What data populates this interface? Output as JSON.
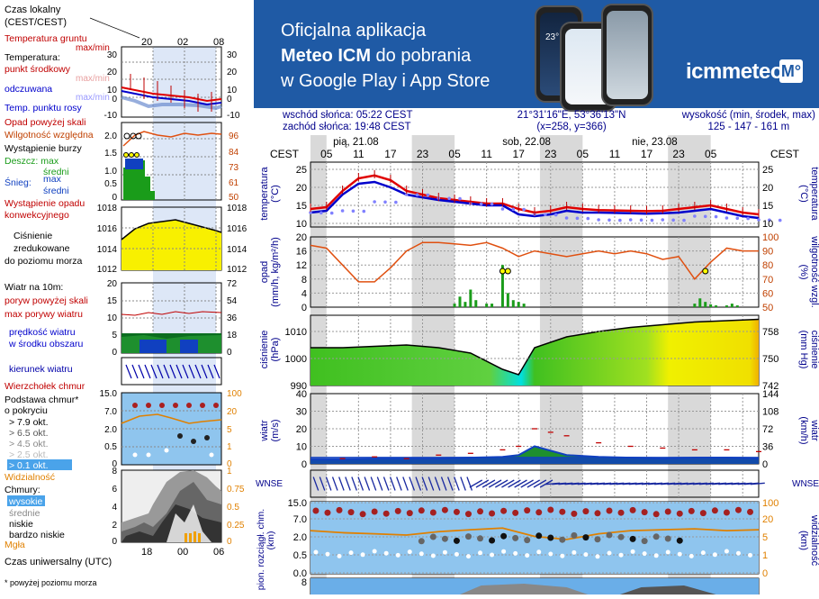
{
  "banner": {
    "line1": "Oficjalna aplikacja",
    "line2_bold": "Meteo ICM",
    "line2_rest": " do pobrania",
    "line3": "w Google Play i App Store",
    "logo_text": "icmmeteo",
    "logo_badge": "M°",
    "phone_temp": "23°"
  },
  "info": {
    "sunrise": "wschód słońca: 05:22 CEST",
    "sunset": "zachód słońca: 19:48 CEST",
    "coords": "21°31'16\"E, 53°36'13\"N",
    "grid": "(x=258,  y=366)",
    "elev_label": "wysokość (min, środek, max)",
    "elev_values": "125 - 147 - 161 m"
  },
  "days": [
    "pią, 21.08",
    "sob, 22.08",
    "nie, 23.08"
  ],
  "hours": [
    "05",
    "11",
    "17",
    "23",
    "05",
    "11",
    "17",
    "23",
    "05",
    "11",
    "17",
    "23",
    "05"
  ],
  "cest": "CEST",
  "legend": {
    "time_local": "Czas lokalny",
    "time_local2": "(CEST/CEST)",
    "time_ticks": [
      "20",
      "02",
      "08"
    ],
    "utc": "Czas uniwersalny (UTC)",
    "utc_ticks": [
      "18",
      "00",
      "06"
    ],
    "footnote": "* powyżej poziomu morza",
    "temp": {
      "ground": "Temperatura gruntu",
      "ground2": "max/min",
      "title": "Temperatura:",
      "mid": "punkt środkowy",
      "mid2": "max/min",
      "feel": "odczuwana",
      "feel2": "max/min",
      "dew": "Temp. punktu rosy",
      "left": [
        "30",
        "20",
        "10",
        "0",
        "-10"
      ],
      "right": [
        "30",
        "20",
        "10",
        "0",
        "-10"
      ]
    },
    "precip": {
      "over": "Opad powyżej skali",
      "hum": "Wilgotność względna",
      "storm": "Wystąpienie burzy",
      "rain": "Deszcz: max",
      "rain2": "średni",
      "snow": "Śnieg:",
      "snow2": "max",
      "snow3": "średni",
      "conv": "Wystąpienie opadu",
      "conv2": "konwekcyjnego",
      "left": [
        "2.0",
        "1.5",
        "1.0",
        "0.5",
        "0"
      ],
      "right": [
        "96",
        "84",
        "73",
        "61",
        "50"
      ]
    },
    "press": {
      "l1": "Ciśnienie",
      "l2": "zredukowane",
      "l3": "do poziomu morza",
      "left": [
        "1018",
        "1016",
        "1014",
        "1012"
      ],
      "right": [
        "1018",
        "1016",
        "1014",
        "1012"
      ]
    },
    "wind": {
      "title": "Wiatr na 10m:",
      "gust_over": "poryw powyżej skali",
      "gust_max": "max porywy wiatru",
      "speed": "prędkość wiatru",
      "speed2": "w środku obszaru",
      "left": [
        "20",
        "15",
        "10",
        "5",
        "0"
      ],
      "right": [
        "72",
        "54",
        "36",
        "18",
        "0"
      ]
    },
    "dir": "kierunek wiatru",
    "cloudbase": {
      "top": "Wierzchołek chmur",
      "title": "Podstawa chmur*",
      "title2": "o pokryciu",
      "o79": "> 7.9 okt.",
      "o65": "> 6.5 okt.",
      "o45": "> 4.5 okt.",
      "o25": "> 2.5 okt.",
      "o01": "> 0.1 okt.",
      "vis": "Widzialność",
      "left": [
        "15.0",
        "7.0",
        "2.0",
        "0.5",
        "0"
      ],
      "right": [
        "100",
        "20",
        "5",
        "1",
        "0"
      ]
    },
    "clouds": {
      "title": "Chmury:",
      "high": "wysokie",
      "mid": "średnie",
      "low": "niskie",
      "vlow": "bardzo niskie",
      "fog": "Mgła",
      "left": [
        "8",
        "6",
        "4",
        "2",
        "0"
      ],
      "right": [
        "1",
        "0.75",
        "0.5",
        "0.25",
        "0"
      ]
    }
  },
  "panels": {
    "temp": {
      "label1": "temperatura",
      "label2": "(°C)",
      "ticks": [
        "25",
        "20",
        "15",
        "10"
      ]
    },
    "precip": {
      "label1": "opad",
      "label2": "(mm/h, kg/m²/h)",
      "ticks": [
        "20",
        "16",
        "12",
        "8",
        "4",
        "0"
      ],
      "rlabel1": "(%)",
      "rlabel2": "wilgotność wzgl.",
      "rticks": [
        "100",
        "90",
        "80",
        "70",
        "60",
        "50"
      ]
    },
    "press": {
      "label1": "ciśnienie",
      "label2": "(hPa)",
      "ticks": [
        "1010",
        "1000",
        "990"
      ],
      "rlabel1": "(mm Hg)",
      "rlabel2": "ciśnienie",
      "rticks": [
        "758",
        "750",
        "742"
      ]
    },
    "wind": {
      "label1": "wiatr",
      "label2": "(m/s)",
      "ticks": [
        "40",
        "30",
        "20",
        "10",
        "0"
      ],
      "rlabel1": "(km/h)",
      "rlabel2": "wiatr",
      "rticks": [
        "144",
        "108",
        "72",
        "36",
        "0"
      ]
    },
    "dir": {
      "label": "WNSE"
    },
    "cloud": {
      "label1": "podst. chm.",
      "label2": "pion. rozciągł. chm.",
      "label3": "(km)",
      "ticks": [
        "15.0",
        "7.0",
        "2.0",
        "0.5",
        "0.0"
      ],
      "rlabel1": "widzialność",
      "rlabel2": "(km)",
      "rticks": [
        "100",
        "20",
        "5",
        "1",
        "0"
      ]
    },
    "bottom": {
      "tick": "8"
    }
  },
  "chart_data": [
    {
      "type": "line",
      "title": "temperatura (°C)",
      "x_unit": "hour index from 21.08 02:00 CEST",
      "ylim": [
        9,
        27
      ],
      "series": [
        {
          "name": "temperatura",
          "color": "#e00000",
          "x": [
            0,
            3,
            6,
            9,
            12,
            15,
            18,
            21,
            24,
            27,
            30,
            33,
            36,
            39,
            42,
            45,
            48,
            51,
            54,
            57,
            60,
            63,
            66,
            69,
            72,
            75,
            78,
            81,
            84
          ],
          "values": [
            14,
            14.5,
            19,
            22.5,
            23.3,
            22,
            19,
            18,
            17,
            16.5,
            16,
            15.5,
            15.5,
            14,
            13,
            13.5,
            14.5,
            14,
            13.7,
            13.6,
            13.5,
            13.4,
            13.5,
            14,
            14.5,
            15,
            14,
            13,
            12.5
          ]
        },
        {
          "name": "odczuwana",
          "color": "#0000cc",
          "x": [
            0,
            3,
            6,
            9,
            12,
            15,
            18,
            21,
            24,
            27,
            30,
            33,
            36,
            39,
            42,
            45,
            48,
            51,
            54,
            57,
            60,
            63,
            66,
            69,
            72,
            75,
            78,
            81,
            84
          ],
          "values": [
            13,
            13.5,
            18,
            21,
            21.5,
            20,
            18,
            17.2,
            16.5,
            16,
            15.5,
            15,
            15,
            12.5,
            12,
            12.5,
            13.5,
            13,
            13,
            12.9,
            12.8,
            12.7,
            12.8,
            13,
            13.5,
            14,
            13,
            12,
            11.5
          ]
        },
        {
          "name": "punkt rosy",
          "color": "#8080ff",
          "x": [
            0,
            6,
            12,
            18,
            24,
            30,
            36,
            42,
            48,
            54,
            60,
            66,
            72,
            78,
            84
          ],
          "values": [
            13,
            13.5,
            16,
            18,
            17,
            15.5,
            14,
            12.5,
            11.5,
            11,
            11,
            11,
            12,
            11.5,
            11
          ]
        }
      ]
    },
    {
      "type": "bar",
      "title": "opad (mm/h)",
      "series": [
        {
          "name": "deszcz",
          "color": "#1a9c1a",
          "x": [
            27,
            28,
            29,
            30,
            31,
            33,
            34,
            36,
            37,
            38,
            39,
            40,
            72,
            73,
            74,
            75,
            76,
            78,
            79,
            80
          ],
          "values": [
            1,
            3,
            1.5,
            5,
            2,
            1,
            1,
            12,
            4,
            2,
            1.5,
            1,
            1,
            2.5,
            1.5,
            0.8,
            0.5,
            0.5,
            1,
            0.5
          ]
        }
      ],
      "humidity": {
        "name": "wilgotność",
        "color": "#e05010",
        "x": [
          0,
          3,
          6,
          9,
          12,
          15,
          18,
          21,
          24,
          27,
          30,
          33,
          36,
          39,
          42,
          45,
          48,
          51,
          54,
          57,
          60,
          63,
          66,
          69,
          72,
          75,
          78,
          81,
          84
        ],
        "values": [
          94,
          92,
          80,
          68,
          68,
          78,
          90,
          96,
          96,
          95,
          94,
          96,
          92,
          86,
          90,
          88,
          86,
          88,
          90,
          88,
          90,
          88,
          84,
          86,
          70,
          82,
          92,
          90,
          90
        ]
      }
    },
    {
      "type": "area",
      "title": "ciśnienie (hPa)",
      "ylim": [
        990,
        1016
      ],
      "x": [
        0,
        6,
        12,
        18,
        24,
        30,
        36,
        39,
        42,
        48,
        54,
        60,
        66,
        72,
        78,
        84
      ],
      "values": [
        1004,
        1004,
        1004.5,
        1005,
        1004,
        1002,
        996,
        994,
        1004,
        1008,
        1010,
        1011.5,
        1012.5,
        1013.5,
        1014,
        1014.5
      ]
    },
    {
      "type": "area",
      "title": "wiatr (m/s)",
      "ylim": [
        0,
        40
      ],
      "series": [
        {
          "name": "prędkość",
          "color": "#1040c0",
          "x": [
            0,
            6,
            12,
            18,
            24,
            30,
            36,
            39,
            42,
            48,
            54,
            60,
            66,
            72,
            78,
            84
          ],
          "values": [
            2.5,
            2.5,
            3,
            3,
            3,
            3.5,
            4,
            5,
            10,
            5,
            4,
            3.5,
            3,
            3.5,
            3.5,
            3
          ]
        },
        {
          "name": "porywy",
          "color": "#c00000",
          "x": [
            6,
            12,
            18,
            24,
            30,
            36,
            39,
            42,
            45,
            48,
            54,
            60,
            66,
            72,
            78,
            84
          ],
          "values": [
            3,
            4,
            3,
            5,
            6,
            8,
            10,
            20,
            18,
            16,
            12,
            10,
            9,
            8,
            8,
            7
          ]
        }
      ]
    },
    {
      "type": "scatter",
      "title": "podstawa chmur (km)",
      "series": [
        {
          "name": "visibility",
          "color": "#e08000",
          "x": [
            0,
            6,
            12,
            18,
            24,
            30,
            36,
            42,
            48,
            54,
            60,
            66,
            72,
            78,
            84
          ],
          "values": [
            15,
            13,
            12,
            11,
            14,
            16,
            18,
            10,
            8,
            12,
            15,
            16,
            17,
            15,
            16
          ]
        }
      ]
    }
  ]
}
